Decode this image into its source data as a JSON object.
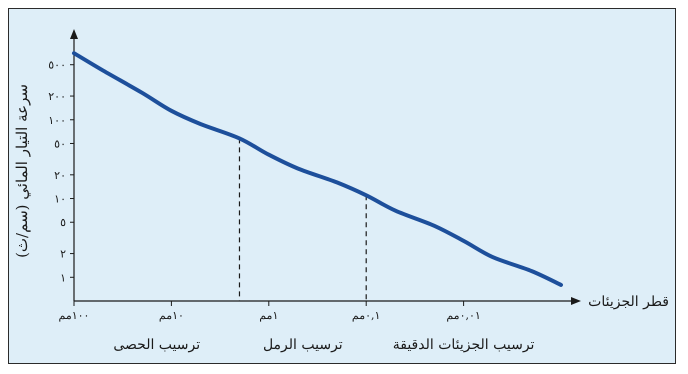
{
  "chart_data": {
    "type": "line",
    "title": "",
    "ylabel": "سرعة التيار المائي (سم/ث)",
    "xlabel": "قطر الجزيئات",
    "y_scale": "log",
    "yticks": [
      {
        "value": 1,
        "label": "١"
      },
      {
        "value": 2,
        "label": "٢"
      },
      {
        "value": 5,
        "label": "٥"
      },
      {
        "value": 10,
        "label": "١٠"
      },
      {
        "value": 20,
        "label": "٢٠"
      },
      {
        "value": 50,
        "label": "٥٠"
      },
      {
        "value": 100,
        "label": "١٠٠"
      },
      {
        "value": 200,
        "label": "٢٠٠"
      },
      {
        "value": 500,
        "label": "٥٠٠"
      }
    ],
    "x_scale": "log-reversed",
    "xlim_mm": [
      100,
      0.001
    ],
    "ylim": [
      0.5,
      1000
    ],
    "xticks": [
      {
        "value": 100,
        "label": "١٠٠مم"
      },
      {
        "value": 10,
        "label": "١٠مم"
      },
      {
        "value": 1,
        "label": "١مم"
      },
      {
        "value": 0.1,
        "label": "٠,١مم"
      },
      {
        "value": 0.01,
        "label": "٠,٠١مم"
      }
    ],
    "series": [
      {
        "color": "#1d4f9b",
        "x": [
          100,
          50,
          20,
          10,
          5,
          2,
          1,
          0.5,
          0.2,
          0.1,
          0.05,
          0.02,
          0.01,
          0.005,
          0.002,
          0.001
        ],
        "y": [
          700,
          420,
          220,
          130,
          88,
          58,
          36,
          24,
          16,
          11,
          7,
          4.5,
          2.9,
          1.8,
          1.2,
          0.8
        ]
      }
    ],
    "markers": [
      {
        "x": 2,
        "y": 58
      },
      {
        "x": 0.1,
        "y": 11
      }
    ],
    "bands": [
      {
        "label": "ترسيب الحصى",
        "from": 100,
        "to": 2
      },
      {
        "label": "ترسيب الرمل",
        "from": 2,
        "to": 0.1
      },
      {
        "label": "ترسيب الجزيئات الدقيقة",
        "from": 0.1,
        "to": 0.001
      }
    ],
    "grid": false
  }
}
